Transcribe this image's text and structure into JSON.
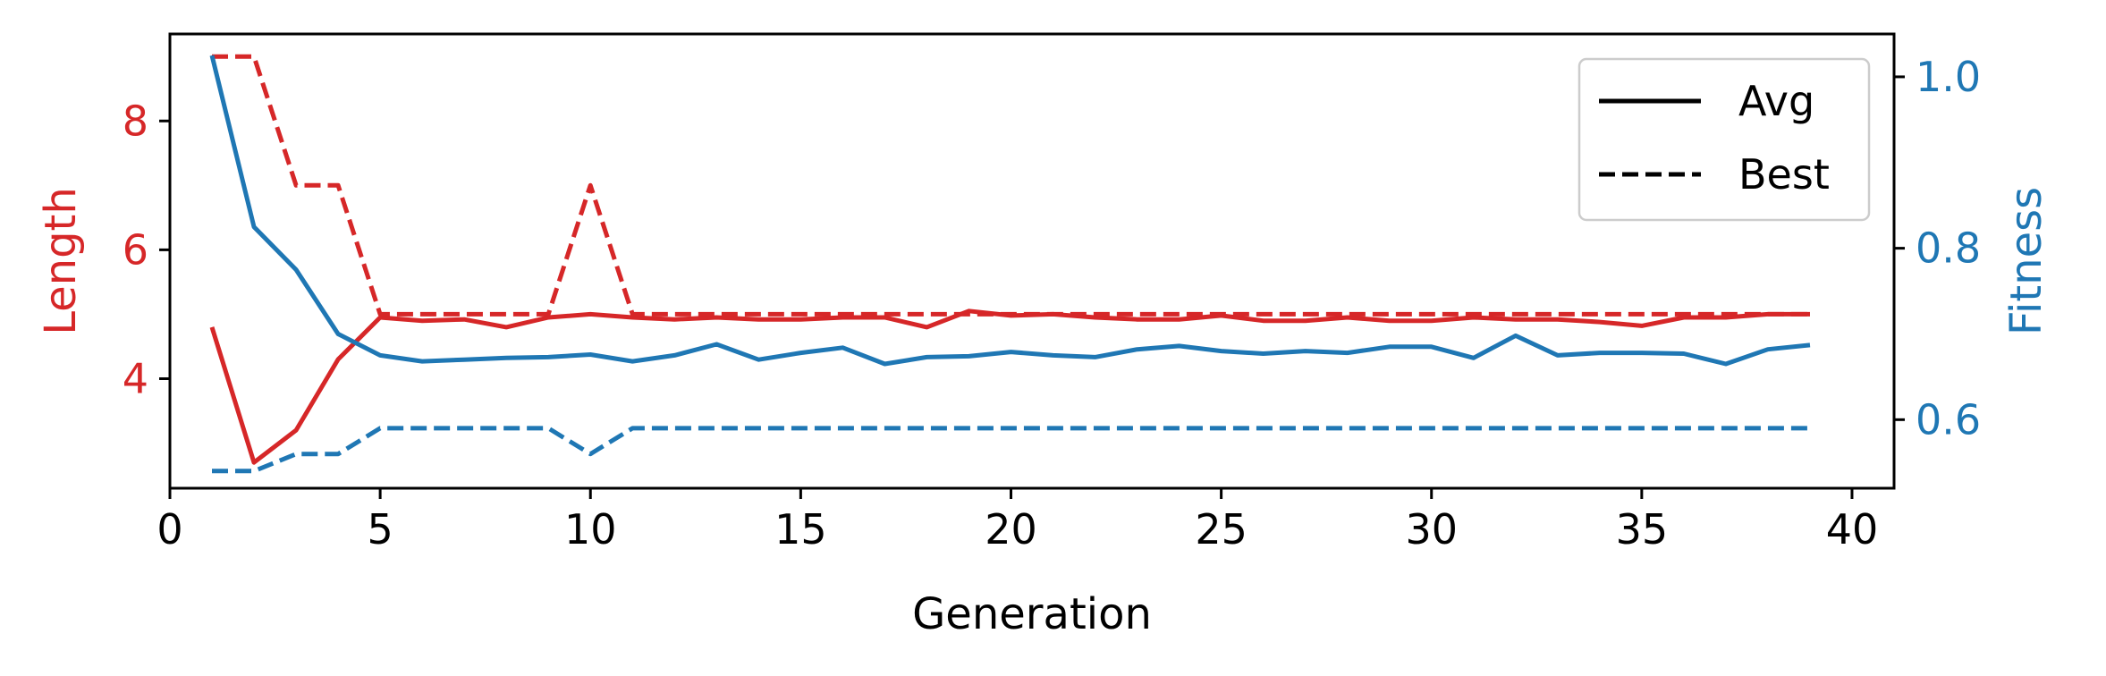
{
  "chart_data": {
    "type": "line",
    "xlabel": "Generation",
    "ylabel_left": "Length",
    "ylabel_right": "Fitness",
    "xlim": [
      0,
      41
    ],
    "ylim_left": [
      2.3,
      9.35
    ],
    "ylim_right": [
      0.52,
      1.05
    ],
    "xticks": [
      0,
      5,
      10,
      15,
      20,
      25,
      30,
      35,
      40
    ],
    "yticks_left": [
      4,
      6,
      8
    ],
    "yticks_right": [
      0.6,
      0.8,
      1.0
    ],
    "ytick_labels_right": [
      "0.6",
      "0.8",
      "1.0"
    ],
    "grid": false,
    "legend_position": "top-right",
    "legend": [
      {
        "label": "Avg",
        "style": "solid"
      },
      {
        "label": "Best",
        "style": "dashed"
      }
    ],
    "colors": {
      "length": "#d62728",
      "fitness": "#1f77b4"
    },
    "x": [
      1,
      2,
      3,
      4,
      5,
      6,
      7,
      8,
      9,
      10,
      11,
      12,
      13,
      14,
      15,
      16,
      17,
      18,
      19,
      20,
      21,
      22,
      23,
      24,
      25,
      26,
      27,
      28,
      29,
      30,
      31,
      32,
      33,
      34,
      35,
      36,
      37,
      38,
      39
    ],
    "series": [
      {
        "name": "Length Avg",
        "axis": "left",
        "style": "solid",
        "color": "#d62728",
        "values": [
          4.8,
          2.7,
          3.2,
          4.3,
          4.95,
          4.9,
          4.92,
          4.8,
          4.95,
          5.0,
          4.95,
          4.92,
          4.95,
          4.92,
          4.92,
          4.95,
          4.95,
          4.8,
          5.05,
          4.98,
          5.0,
          4.95,
          4.92,
          4.92,
          4.98,
          4.9,
          4.9,
          4.95,
          4.9,
          4.9,
          4.95,
          4.92,
          4.92,
          4.88,
          4.82,
          4.95,
          4.95,
          5.0,
          5.0
        ]
      },
      {
        "name": "Length Best",
        "axis": "left",
        "style": "dashed",
        "color": "#d62728",
        "values": [
          9.0,
          9.0,
          7.0,
          7.0,
          5.0,
          5.0,
          5.0,
          5.0,
          5.0,
          7.0,
          5.0,
          5.0,
          5.0,
          5.0,
          5.0,
          5.0,
          5.0,
          5.0,
          5.0,
          5.0,
          5.0,
          5.0,
          5.0,
          5.0,
          5.0,
          5.0,
          5.0,
          5.0,
          5.0,
          5.0,
          5.0,
          5.0,
          5.0,
          5.0,
          5.0,
          5.0,
          5.0,
          5.0,
          5.0
        ]
      },
      {
        "name": "Fitness Avg",
        "axis": "right",
        "style": "solid",
        "color": "#1f77b4",
        "values": [
          1.025,
          0.825,
          0.775,
          0.7,
          0.675,
          0.668,
          0.67,
          0.672,
          0.673,
          0.676,
          0.668,
          0.675,
          0.688,
          0.67,
          0.678,
          0.684,
          0.665,
          0.673,
          0.674,
          0.679,
          0.675,
          0.673,
          0.682,
          0.686,
          0.68,
          0.677,
          0.68,
          0.678,
          0.685,
          0.685,
          0.672,
          0.698,
          0.675,
          0.678,
          0.678,
          0.677,
          0.665,
          0.682,
          0.687
        ]
      },
      {
        "name": "Fitness Best",
        "axis": "right",
        "style": "dashed",
        "color": "#1f77b4",
        "values": [
          0.54,
          0.54,
          0.56,
          0.56,
          0.59,
          0.59,
          0.59,
          0.59,
          0.59,
          0.56,
          0.59,
          0.59,
          0.59,
          0.59,
          0.59,
          0.59,
          0.59,
          0.59,
          0.59,
          0.59,
          0.59,
          0.59,
          0.59,
          0.59,
          0.59,
          0.59,
          0.59,
          0.59,
          0.59,
          0.59,
          0.59,
          0.59,
          0.59,
          0.59,
          0.59,
          0.59,
          0.59,
          0.59,
          0.59
        ]
      }
    ]
  }
}
